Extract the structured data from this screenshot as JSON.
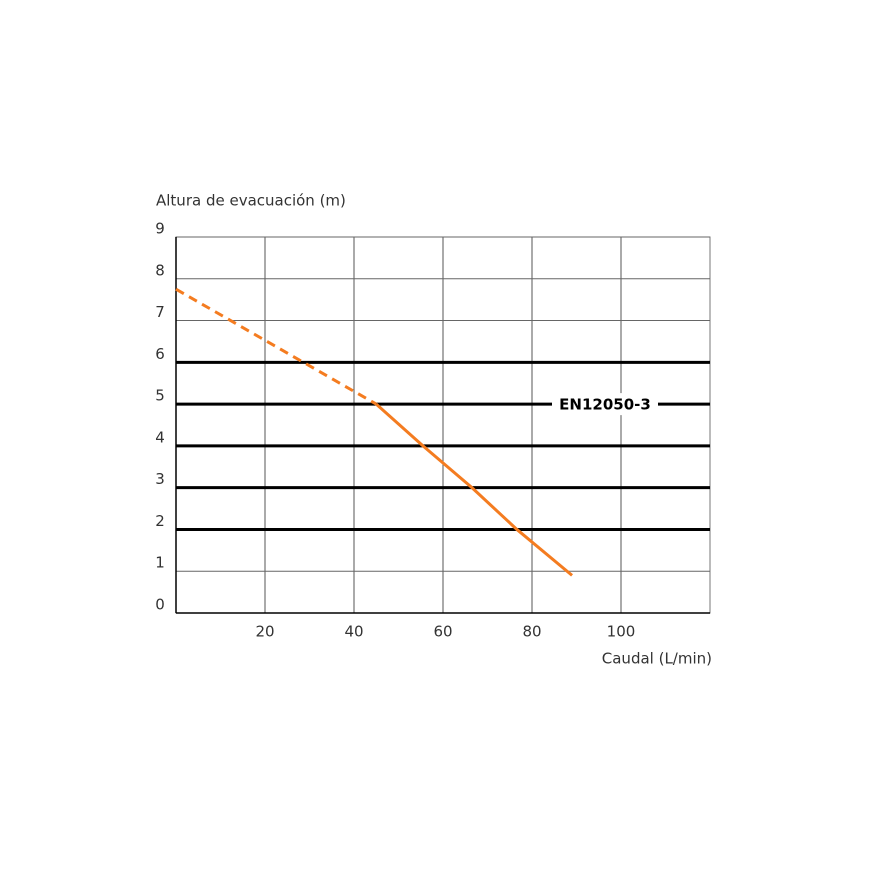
{
  "chart_data": {
    "type": "line",
    "y_label": "Altura de evacuación (m)",
    "x_label": "Caudal (L/min)",
    "x": [
      0,
      45,
      55.5,
      66.5,
      76.6,
      89
    ],
    "series": [
      {
        "color": "#f47c20",
        "dashed": true,
        "values": [
          7.75,
          5.0,
          null,
          null,
          null,
          null
        ]
      },
      {
        "color": "#f47c20",
        "dashed": false,
        "values": [
          null,
          5.0,
          4,
          3,
          2,
          0.9
        ]
      }
    ],
    "xlim": [
      0,
      120
    ],
    "xticks": [
      20,
      40,
      60,
      80,
      100
    ],
    "ylim": [
      0,
      9
    ],
    "yticks": [
      0,
      1,
      2,
      3,
      4,
      5,
      6,
      7,
      8,
      9
    ],
    "bold_grid_range": [
      2,
      6
    ],
    "grid": true,
    "annotation": {
      "text": "EN12050-3",
      "y": 5
    }
  }
}
